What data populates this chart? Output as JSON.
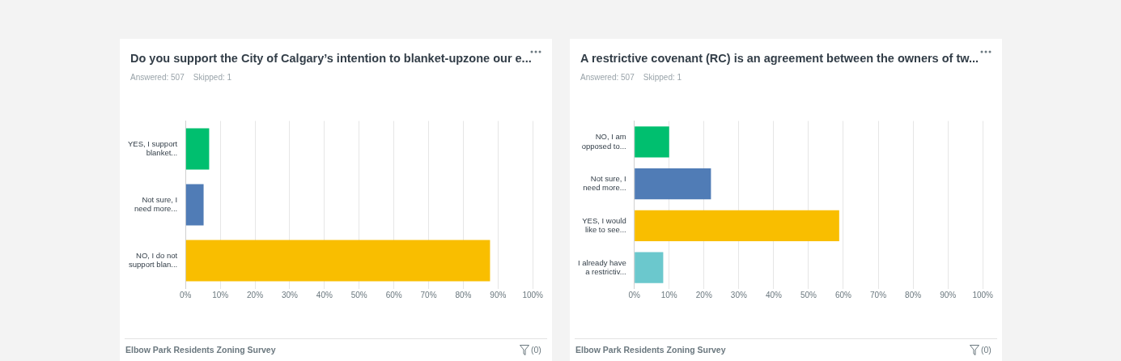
{
  "chart_data": [
    {
      "type": "bar",
      "orientation": "horizontal",
      "title": "Do you support the City of Calgary’s intention to blanket-upzone our e...",
      "subtitle": "Answered: 507    Skipped: 1",
      "categories": [
        "YES, I support blanket...",
        "Not sure, I need more...",
        "NO, I do not support blan..."
      ],
      "values": [
        6.8,
        5.2,
        87.7
      ],
      "colors": [
        "#00bf6f",
        "#507cb6",
        "#f9be00"
      ],
      "xlim": [
        0,
        100
      ],
      "xticks": [
        {
          "value": 0,
          "label": "0%"
        },
        {
          "value": 10,
          "label": "10%"
        },
        {
          "value": 20,
          "label": "20%"
        },
        {
          "value": 30,
          "label": "30%"
        },
        {
          "value": 40,
          "label": "40%"
        },
        {
          "value": 50,
          "label": "50%"
        },
        {
          "value": 60,
          "label": "60%"
        },
        {
          "value": 70,
          "label": "70%"
        },
        {
          "value": 80,
          "label": "80%"
        },
        {
          "value": 90,
          "label": "90%"
        },
        {
          "value": 100,
          "label": "100%"
        }
      ],
      "grid": "x",
      "legend": false,
      "annotations": [
        "Elbow Park Residents Zoning Survey",
        "(0)"
      ]
    },
    {
      "type": "bar",
      "orientation": "horizontal",
      "title": "A restrictive covenant (RC) is an agreement between the owners of tw...",
      "subtitle": "Answered: 507    Skipped: 1",
      "categories": [
        "NO, I am opposed to...",
        "Not sure, I need more...",
        "YES, I would like to see...",
        "I already have a restrictiv..."
      ],
      "values": [
        10.0,
        22.0,
        58.8,
        8.3
      ],
      "colors": [
        "#00bf6f",
        "#507cb6",
        "#f9be00",
        "#6bc8cd"
      ],
      "xlim": [
        0,
        100
      ],
      "xticks": [
        {
          "value": 0,
          "label": "0%"
        },
        {
          "value": 10,
          "label": "10%"
        },
        {
          "value": 20,
          "label": "20%"
        },
        {
          "value": 30,
          "label": "30%"
        },
        {
          "value": 40,
          "label": "40%"
        },
        {
          "value": 50,
          "label": "50%"
        },
        {
          "value": 60,
          "label": "60%"
        },
        {
          "value": 70,
          "label": "70%"
        },
        {
          "value": 80,
          "label": "80%"
        },
        {
          "value": 90,
          "label": "90%"
        },
        {
          "value": 100,
          "label": "100%"
        }
      ],
      "grid": "x",
      "legend": false,
      "annotations": [
        "Elbow Park Residents Zoning Survey",
        "(0)"
      ]
    }
  ]
}
